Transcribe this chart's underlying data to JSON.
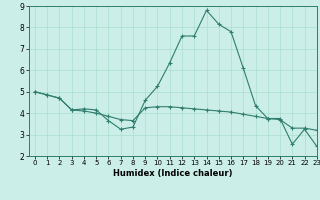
{
  "title": "",
  "xlabel": "Humidex (Indice chaleur)",
  "ylabel": "",
  "bg_color": "#cceee8",
  "line_color": "#2e7d6e",
  "grid_color": "#aaddcc",
  "xlim": [
    -0.5,
    23
  ],
  "ylim": [
    2,
    9
  ],
  "xticks": [
    0,
    1,
    2,
    3,
    4,
    5,
    6,
    7,
    8,
    9,
    10,
    11,
    12,
    13,
    14,
    15,
    16,
    17,
    18,
    19,
    20,
    21,
    22,
    23
  ],
  "yticks": [
    2,
    3,
    4,
    5,
    6,
    7,
    8,
    9
  ],
  "line1_x": [
    0,
    1,
    2,
    3,
    4,
    5,
    6,
    7,
    8,
    9,
    10,
    11,
    12,
    13,
    14,
    15,
    16,
    17,
    18,
    19,
    20,
    21,
    22,
    23
  ],
  "line1_y": [
    5.0,
    4.85,
    4.7,
    4.15,
    4.2,
    4.15,
    3.65,
    3.25,
    3.35,
    4.6,
    5.25,
    6.35,
    7.6,
    7.6,
    8.8,
    8.15,
    7.8,
    6.1,
    4.35,
    3.75,
    3.75,
    2.55,
    3.25,
    2.45
  ],
  "line2_x": [
    0,
    1,
    2,
    3,
    4,
    5,
    6,
    7,
    8,
    9,
    10,
    11,
    12,
    13,
    14,
    15,
    16,
    17,
    18,
    19,
    20,
    21,
    22,
    23
  ],
  "line2_y": [
    5.0,
    4.85,
    4.7,
    4.15,
    4.1,
    4.0,
    3.85,
    3.7,
    3.65,
    4.25,
    4.3,
    4.3,
    4.25,
    4.2,
    4.15,
    4.1,
    4.05,
    3.95,
    3.85,
    3.75,
    3.7,
    3.3,
    3.3,
    3.2
  ]
}
